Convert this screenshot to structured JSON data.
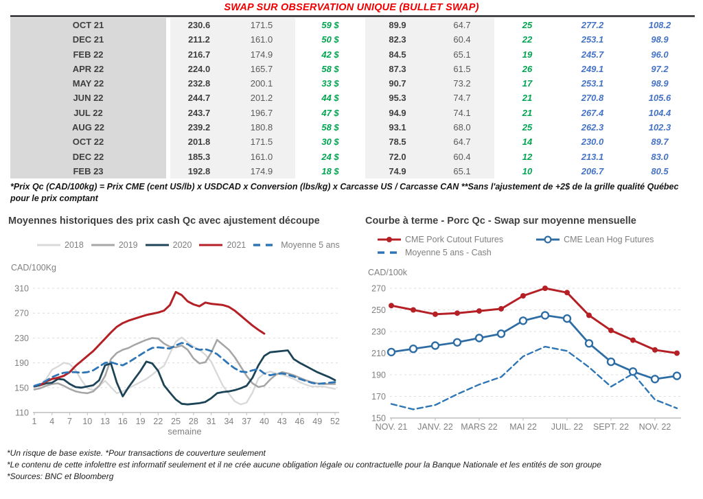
{
  "table": {
    "title": "SWAP SUR OBSERVATION UNIQUE (BULLET SWAP)",
    "rows": [
      [
        "OCT 21",
        "230.6",
        "171.5",
        "59 $",
        "89.9",
        "64.7",
        "25",
        "277.2",
        "108.2"
      ],
      [
        "DEC 21",
        "211.2",
        "161.0",
        "50 $",
        "82.3",
        "60.4",
        "22",
        "253.1",
        "98.9"
      ],
      [
        "FEB 22",
        "216.7",
        "174.9",
        "42 $",
        "84.5",
        "65.1",
        "19",
        "245.7",
        "96.0"
      ],
      [
        "APR 22",
        "224.0",
        "165.7",
        "58 $",
        "87.3",
        "61.5",
        "26",
        "249.1",
        "97.2"
      ],
      [
        "MAY 22",
        "232.8",
        "200.1",
        "33 $",
        "90.7",
        "73.2",
        "17",
        "253.1",
        "98.9"
      ],
      [
        "JUN 22",
        "244.7",
        "201.2",
        "44 $",
        "95.3",
        "74.7",
        "21",
        "270.8",
        "105.6"
      ],
      [
        "JUL 22",
        "243.7",
        "196.7",
        "47 $",
        "94.9",
        "74.1",
        "21",
        "267.4",
        "104.4"
      ],
      [
        "AUG 22",
        "239.2",
        "180.8",
        "58 $",
        "93.1",
        "68.0",
        "25",
        "262.3",
        "102.3"
      ],
      [
        "OCT 22",
        "201.8",
        "171.5",
        "30 $",
        "78.5",
        "64.7",
        "14",
        "230.0",
        "89.7"
      ],
      [
        "DEC 22",
        "185.3",
        "161.0",
        "24 $",
        "72.0",
        "60.4",
        "12",
        "213.1",
        "83.0"
      ],
      [
        "FEB 23",
        "192.8",
        "174.9",
        "18 $",
        "74.9",
        "65.1",
        "10",
        "206.7",
        "80.5"
      ]
    ],
    "footnote": "*Prix Qc (CAD/100kg) = Prix CME (cent US/lb) x USDCAD x Conversion (lbs/kg) x Carcasse US / Carcasse CAN **Sans l'ajustement de +2$ de la grille qualité Québec pour le prix comptant"
  },
  "chart_data": [
    {
      "type": "line",
      "title": "Moyennes historiques des prix cash Qc avec ajustement découpe",
      "unit": "CAD/100Kg",
      "xlabel": "semaine",
      "ylim": [
        110,
        310
      ],
      "ytick_step": 40,
      "grid": true,
      "legend_position": "top",
      "legend_rows": [
        [
          0,
          1,
          2,
          3,
          4
        ]
      ],
      "x_count": 52,
      "xticks": [
        {
          "i": 0,
          "label": "1"
        },
        {
          "i": 3,
          "label": "4"
        },
        {
          "i": 6,
          "label": "7"
        },
        {
          "i": 9,
          "label": "10"
        },
        {
          "i": 12,
          "label": "13"
        },
        {
          "i": 15,
          "label": "16"
        },
        {
          "i": 18,
          "label": "19"
        },
        {
          "i": 21,
          "label": "22"
        },
        {
          "i": 24,
          "label": "25"
        },
        {
          "i": 27,
          "label": "28"
        },
        {
          "i": 30,
          "label": "31"
        },
        {
          "i": 33,
          "label": "34"
        },
        {
          "i": 36,
          "label": "37"
        },
        {
          "i": 39,
          "label": "40"
        },
        {
          "i": 42,
          "label": "43"
        },
        {
          "i": 45,
          "label": "46"
        },
        {
          "i": 48,
          "label": "49"
        },
        {
          "i": 51,
          "label": "52"
        }
      ],
      "series": [
        {
          "name": "2018",
          "color": "#d9d9d9",
          "width": 2.4,
          "legend_style": "line",
          "values": [
            150,
            155,
            164,
            179,
            184,
            190,
            188,
            178,
            162,
            149,
            146,
            153,
            161,
            151,
            141,
            144,
            149,
            154,
            159,
            164,
            171,
            179,
            185,
            205,
            224,
            231,
            223,
            216,
            211,
            203,
            192,
            172,
            153,
            140,
            128,
            123,
            126,
            142,
            165,
            173,
            176,
            173,
            171,
            168,
            164,
            159,
            155,
            152,
            152,
            152,
            150,
            148
          ]
        },
        {
          "name": "2019",
          "color": "#a6a6a6",
          "width": 2.6,
          "legend_style": "line",
          "values": [
            147,
            149,
            153,
            156,
            157,
            153,
            148,
            144,
            142,
            141,
            144,
            153,
            169,
            196,
            206,
            211,
            214,
            219,
            223,
            227,
            230,
            229,
            221,
            216,
            215,
            218,
            211,
            197,
            189,
            191,
            206,
            227,
            219,
            211,
            199,
            184,
            169,
            157,
            151,
            153,
            163,
            171,
            175,
            173,
            170,
            166,
            162,
            159,
            157,
            156,
            156,
            156
          ]
        },
        {
          "name": "2020",
          "color": "#1c4356",
          "width": 2.8,
          "legend_style": "line",
          "values": [
            152,
            154,
            157,
            158,
            164,
            163,
            156,
            151,
            150,
            152,
            154,
            162,
            186,
            189,
            158,
            136,
            151,
            164,
            177,
            192,
            189,
            177,
            154,
            142,
            131,
            124,
            123,
            124,
            125,
            127,
            133,
            141,
            143,
            144,
            146,
            149,
            153,
            166,
            186,
            201,
            207,
            208,
            209,
            210,
            196,
            190,
            185,
            180,
            175,
            171,
            167,
            162
          ]
        },
        {
          "name": "2021",
          "color": "#b42025",
          "width": 3,
          "legend_style": "line",
          "values": [
            null,
            154,
            160,
            164,
            166,
            169,
            175,
            185,
            193,
            201,
            209,
            219,
            229,
            239,
            248,
            254,
            258,
            261,
            264,
            267,
            269,
            271,
            274,
            283,
            304,
            299,
            289,
            284,
            281,
            287,
            285,
            284,
            283,
            280,
            274,
            266,
            258,
            250,
            243,
            237,
            null,
            null,
            null,
            null,
            null,
            null,
            null,
            null,
            null,
            null,
            null,
            null
          ]
        },
        {
          "name": "Moyenne 5 ans",
          "color": "#2e75b6",
          "width": 2.8,
          "dash": "9 6",
          "legend_style": "dash",
          "values": [
            153,
            156,
            161,
            167,
            171,
            174,
            175,
            175,
            174,
            175,
            178,
            184,
            190,
            191,
            188,
            186,
            191,
            197,
            203,
            209,
            214,
            215,
            214,
            213,
            218,
            222,
            220,
            214,
            211,
            212,
            209,
            204,
            196,
            188,
            181,
            176,
            175,
            178,
            180,
            173,
            170,
            172,
            173,
            171,
            168,
            164,
            161,
            158,
            156,
            157,
            158,
            159
          ]
        }
      ]
    },
    {
      "type": "line",
      "title": "Courbe à terme - Porc Qc - Swap sur moyenne mensuelle",
      "unit": "CAD/100k",
      "xlabel": "",
      "ylim": [
        150,
        270
      ],
      "ytick_step": 20,
      "grid": true,
      "legend_position": "top",
      "legend_rows": [
        [
          0,
          1
        ],
        [
          2
        ]
      ],
      "x_count": 14,
      "xticks": [
        {
          "i": 0,
          "label": "NOV. 21"
        },
        {
          "i": 2,
          "label": "JANV. 22"
        },
        {
          "i": 4,
          "label": "MARS 22"
        },
        {
          "i": 6,
          "label": "MAI 22"
        },
        {
          "i": 8,
          "label": "JUIL. 22"
        },
        {
          "i": 10,
          "label": "SEPT. 22"
        },
        {
          "i": 12,
          "label": "NOV. 22"
        }
      ],
      "series": [
        {
          "name": "CME Pork Cutout Futures",
          "color": "#b42025",
          "width": 3,
          "marker": "filled",
          "legend_style": "line-dot",
          "values": [
            254,
            250,
            246,
            247,
            249,
            251,
            263,
            270,
            266,
            245,
            231,
            222,
            213,
            210
          ]
        },
        {
          "name": "CME Lean Hog Futures",
          "color": "#2e6da4",
          "width": 2.8,
          "marker": "open",
          "legend_style": "line-open",
          "values": [
            211,
            214,
            217,
            220,
            224,
            228,
            240,
            245,
            242,
            219,
            202,
            193,
            186,
            189
          ]
        },
        {
          "name": "Moyenne 5 ans - Cash",
          "color": "#2e75b6",
          "width": 2.4,
          "dash": "8 5",
          "legend_style": "dash",
          "values": [
            163,
            158,
            162,
            172,
            181,
            188,
            207,
            216,
            212,
            197,
            179,
            191,
            167,
            159
          ]
        }
      ]
    }
  ],
  "footer": {
    "lines": [
      "*Un risque de base existe. *Pour transactions de couverture seulement",
      "*Le contenu de cette infolettre est informatif seulement et il ne crée aucune obligation légale ou contractuelle pour la Banque Nationale et les entités de son groupe",
      "*Sources: BNC et Bloomberg"
    ]
  },
  "colors": {
    "title_red": "#ee0000",
    "table_green": "#00a550",
    "table_blue": "#4472c4",
    "axis_text": "#808080"
  }
}
